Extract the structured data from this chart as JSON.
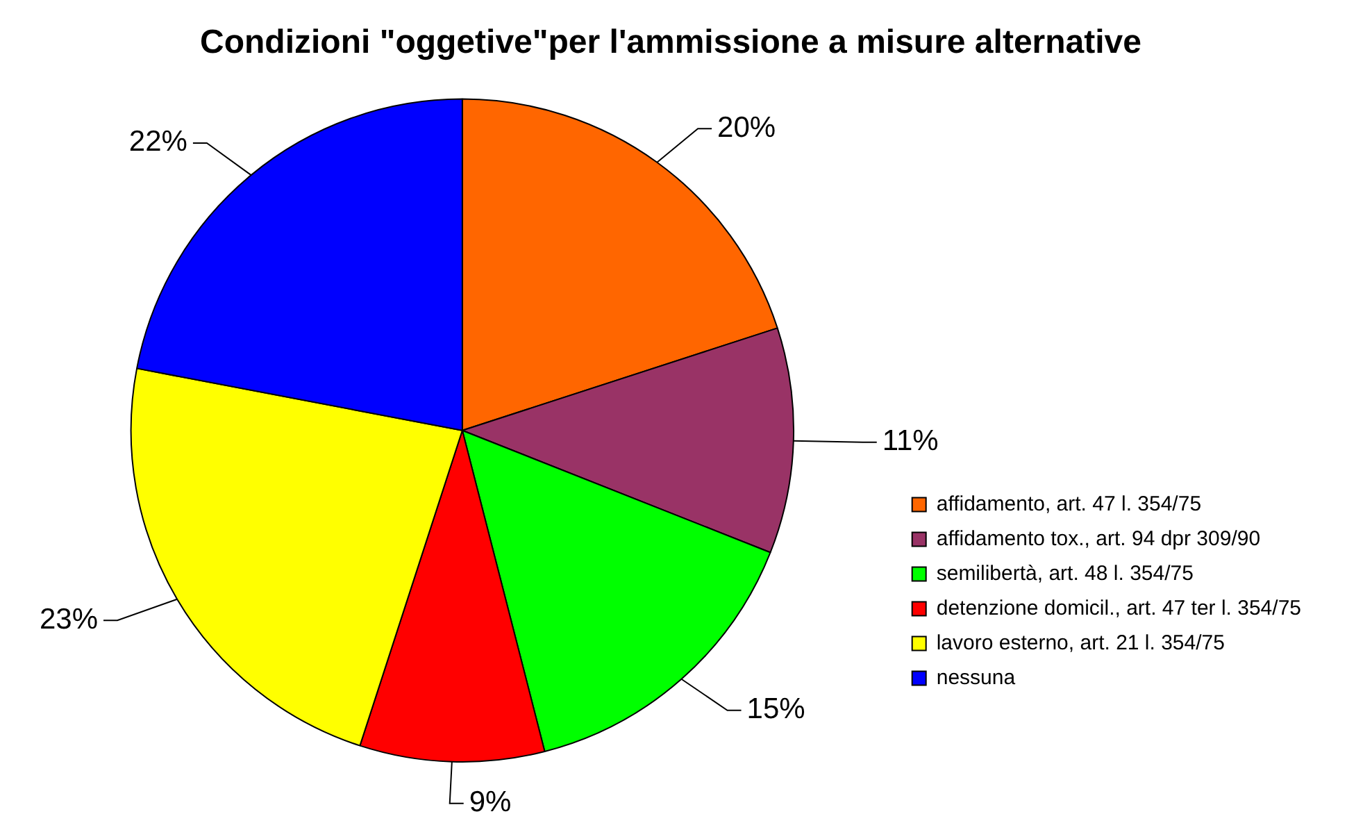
{
  "chart_data": {
    "type": "pie",
    "title": "Condizioni \"oggetive\"per l'ammissione a misure alternative",
    "categories": [
      "affidamento, art. 47 l. 354/75",
      "affidamento tox., art. 94 dpr 309/90",
      "semilibertà, art. 48 l. 354/75",
      "detenzione domicil., art. 47 ter l. 354/75",
      "lavoro esterno, art. 21 l. 354/75",
      "nessuna"
    ],
    "values": [
      20,
      11,
      15,
      9,
      23,
      22
    ],
    "colors": [
      "#ff6600",
      "#993366",
      "#00ff00",
      "#ff0000",
      "#ffff00",
      "#0000ff"
    ],
    "value_labels": [
      "20%",
      "11%",
      "15%",
      "9%",
      "23%",
      "22%"
    ],
    "legend": "right"
  }
}
